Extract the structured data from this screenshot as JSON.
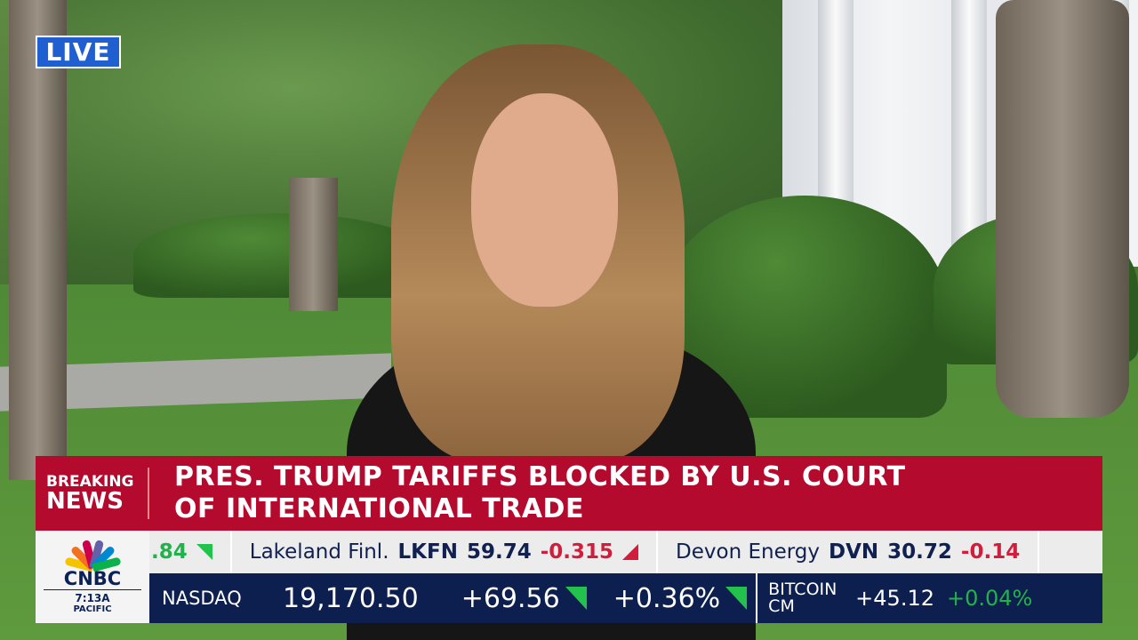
{
  "live_badge": "LIVE",
  "chyron": {
    "label_line1": "BREAKING",
    "label_line2": "NEWS",
    "headline_line1": "PRES. TRUMP TARIFFS BLOCKED BY U.S. COURT",
    "headline_line2": "OF INTERNATIONAL TRADE",
    "color": "#b40a2d"
  },
  "network": {
    "logo_text": "CNBC",
    "time": "7:13A",
    "timezone": "PACIFIC"
  },
  "stock_ticker": [
    {
      "name": "",
      "symbol": "",
      "price": "",
      "change": ".84",
      "direction": "up"
    },
    {
      "name": "Lakeland Finl.",
      "symbol": "LKFN",
      "price": "59.74",
      "change": "-0.315",
      "direction": "down"
    },
    {
      "name": "Devon Energy",
      "symbol": "DVN",
      "price": "30.72",
      "change": "-0.14",
      "direction": "down"
    }
  ],
  "index_ticker": {
    "nasdaq": {
      "label": "NASDAQ",
      "value": "19,170.50",
      "change": "+69.56",
      "percent": "+0.36%"
    },
    "bitcoin": {
      "label_line1": "BITCOIN",
      "label_line2": "CM",
      "change": "+45.12",
      "percent": "+0.04%"
    }
  },
  "colors": {
    "up": "#22b24c",
    "down": "#d11e3c",
    "ticker_bg": "#0d1f4f",
    "live_bg": "#1f5fd0"
  }
}
